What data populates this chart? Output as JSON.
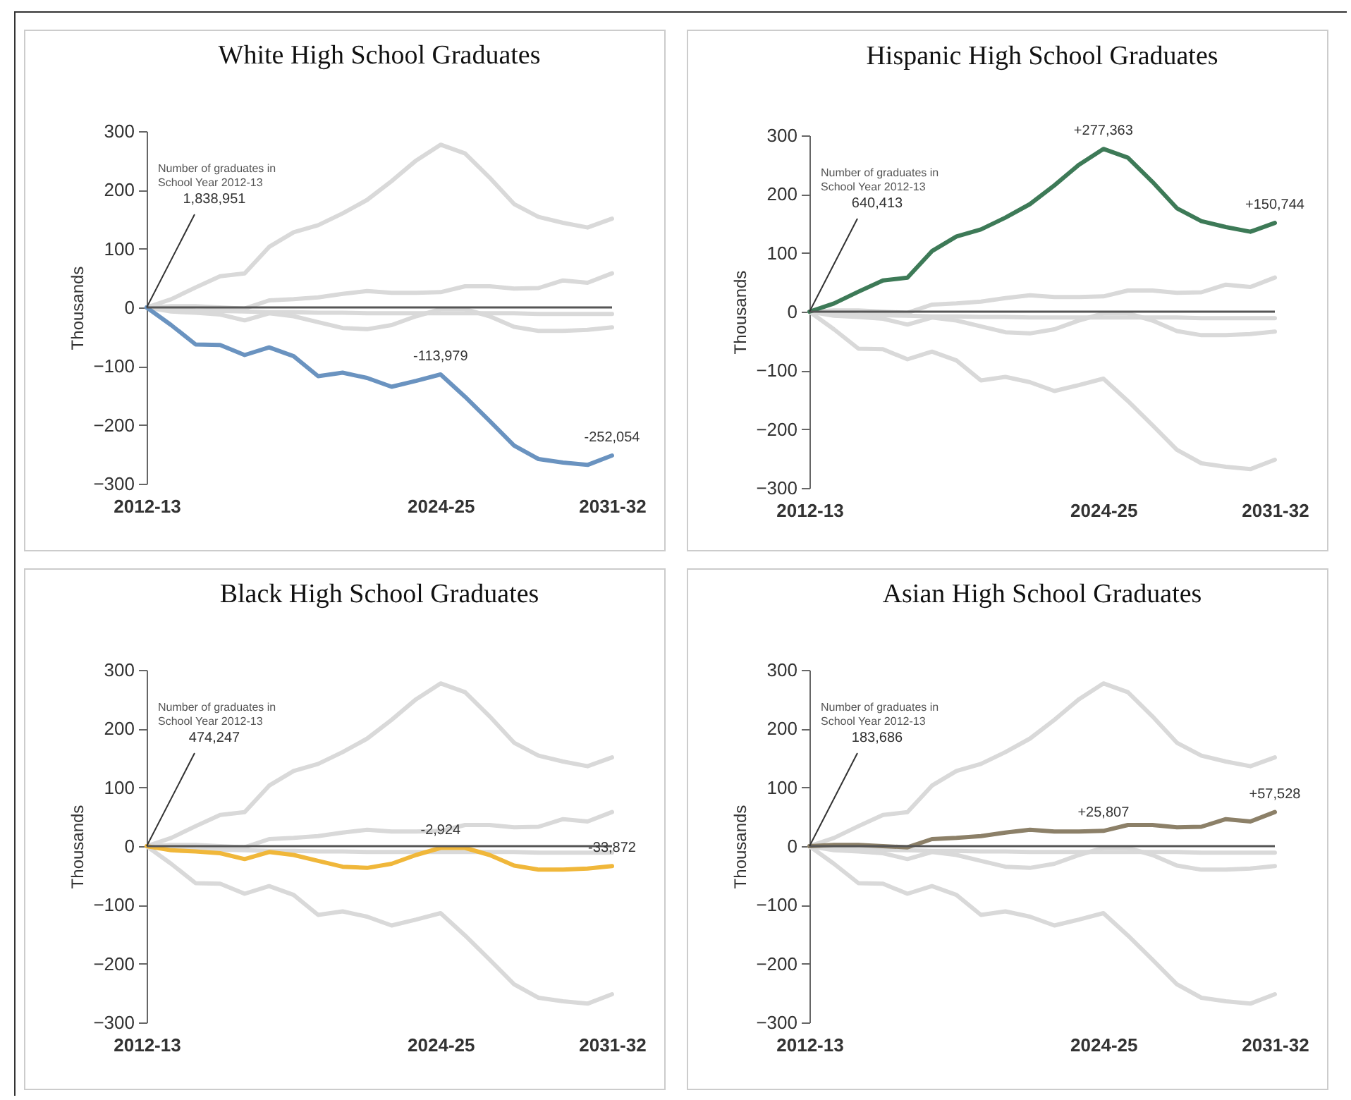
{
  "chart_data": [
    {
      "type": "line",
      "title": "White High School Graduates",
      "ylabel": "Thousands",
      "categories": [
        "2012-13",
        null,
        null,
        null,
        null,
        null,
        null,
        null,
        null,
        null,
        null,
        null,
        "2024-25",
        null,
        null,
        null,
        null,
        null,
        null,
        "2031-32"
      ],
      "ylim": [
        -300,
        300
      ],
      "yticks": [
        -300,
        -200,
        -100,
        0,
        100,
        200,
        300
      ],
      "ref_lines": [
        {
          "axis": "y",
          "value": 0,
          "color": "#555555"
        }
      ],
      "series": [
        {
          "color": "#d9d9d9",
          "values": [
            0,
            14,
            34,
            53,
            58,
            103,
            128,
            140,
            160,
            183,
            215,
            250,
            277,
            262,
            221,
            176,
            154,
            144,
            136,
            151
          ]
        },
        {
          "color": "#d9d9d9",
          "values": [
            0,
            2,
            2,
            0,
            -2,
            12,
            14,
            17,
            23,
            28,
            25,
            25,
            26,
            36,
            36,
            32,
            33,
            46,
            42,
            58
          ]
        },
        {
          "color": "#d9d9d9",
          "values": [
            0,
            -3,
            -5,
            -6,
            -7,
            -8,
            -8,
            -9,
            -9,
            -10,
            -10,
            -10,
            -10,
            -10,
            -10,
            -10,
            -11,
            -11,
            -11,
            -11
          ]
        },
        {
          "color": "#d9d9d9",
          "values": [
            0,
            -7,
            -9,
            -12,
            -22,
            -10,
            -15,
            -25,
            -35,
            -37,
            -30,
            -15,
            -3,
            -3,
            -15,
            -33,
            -40,
            -40,
            -38,
            -34
          ]
        },
        {
          "color": "#6a93c0",
          "values": [
            0,
            -30,
            -63,
            -64,
            -81,
            -68,
            -83,
            -117,
            -111,
            -120,
            -135,
            -125,
            -114,
            -152,
            -193,
            -235,
            -258,
            -264,
            -268,
            -252
          ]
        }
      ],
      "annotations": [
        "Number of graduates in School Year 2012-13",
        {
          "text": "1,838,951",
          "x": "2012-13",
          "y": 0
        },
        {
          "text": "-113,979",
          "x": "2024-25",
          "y": -114
        },
        {
          "text": "-252,054",
          "x": "2031-32",
          "y": -252
        }
      ]
    },
    {
      "type": "line",
      "title": "Hispanic High School Graduates",
      "ylabel": "Thousands",
      "categories": [
        "2012-13",
        null,
        null,
        null,
        null,
        null,
        null,
        null,
        null,
        null,
        null,
        null,
        "2024-25",
        null,
        null,
        null,
        null,
        null,
        null,
        "2031-32"
      ],
      "ylim": [
        -300,
        300
      ],
      "yticks": [
        -300,
        -200,
        -100,
        0,
        100,
        200,
        300
      ],
      "ref_lines": [
        {
          "axis": "y",
          "value": 0,
          "color": "#555555"
        }
      ],
      "series": [
        {
          "color": "#d9d9d9",
          "values": [
            0,
            -30,
            -63,
            -64,
            -81,
            -68,
            -83,
            -117,
            -111,
            -120,
            -135,
            -125,
            -114,
            -152,
            -193,
            -235,
            -258,
            -264,
            -268,
            -252
          ]
        },
        {
          "color": "#d9d9d9",
          "values": [
            0,
            2,
            2,
            0,
            -2,
            12,
            14,
            17,
            23,
            28,
            25,
            25,
            26,
            36,
            36,
            32,
            33,
            46,
            42,
            58
          ]
        },
        {
          "color": "#d9d9d9",
          "values": [
            0,
            -3,
            -5,
            -6,
            -7,
            -8,
            -8,
            -9,
            -9,
            -10,
            -10,
            -10,
            -10,
            -10,
            -10,
            -10,
            -11,
            -11,
            -11,
            -11
          ]
        },
        {
          "color": "#d9d9d9",
          "values": [
            0,
            -7,
            -9,
            -12,
            -22,
            -10,
            -15,
            -25,
            -35,
            -37,
            -30,
            -15,
            -3,
            -3,
            -15,
            -33,
            -40,
            -40,
            -38,
            -34
          ]
        },
        {
          "color": "#3d7a57",
          "values": [
            0,
            14,
            34,
            53,
            58,
            103,
            128,
            140,
            160,
            183,
            215,
            250,
            277,
            262,
            221,
            176,
            154,
            144,
            136,
            151
          ]
        }
      ],
      "annotations": [
        "Number of graduates in School Year 2012-13",
        {
          "text": "640,413",
          "x": "2012-13",
          "y": 0
        },
        {
          "text": "+277,363",
          "x": "2024-25",
          "y": 277
        },
        {
          "text": "+150,744",
          "x": "2031-32",
          "y": 151
        }
      ]
    },
    {
      "type": "line",
      "title": "Black High School Graduates",
      "ylabel": "Thousands",
      "categories": [
        "2012-13",
        null,
        null,
        null,
        null,
        null,
        null,
        null,
        null,
        null,
        null,
        null,
        "2024-25",
        null,
        null,
        null,
        null,
        null,
        null,
        "2031-32"
      ],
      "ylim": [
        -300,
        300
      ],
      "yticks": [
        -300,
        -200,
        -100,
        0,
        100,
        200,
        300
      ],
      "ref_lines": [
        {
          "axis": "y",
          "value": 0,
          "color": "#555555"
        }
      ],
      "series": [
        {
          "color": "#d9d9d9",
          "values": [
            0,
            14,
            34,
            53,
            58,
            103,
            128,
            140,
            160,
            183,
            215,
            250,
            277,
            262,
            221,
            176,
            154,
            144,
            136,
            151
          ]
        },
        {
          "color": "#d9d9d9",
          "values": [
            0,
            -30,
            -63,
            -64,
            -81,
            -68,
            -83,
            -117,
            -111,
            -120,
            -135,
            -125,
            -114,
            -152,
            -193,
            -235,
            -258,
            -264,
            -268,
            -252
          ]
        },
        {
          "color": "#d9d9d9",
          "values": [
            0,
            2,
            2,
            0,
            -2,
            12,
            14,
            17,
            23,
            28,
            25,
            25,
            26,
            36,
            36,
            32,
            33,
            46,
            42,
            58
          ]
        },
        {
          "color": "#d9d9d9",
          "values": [
            0,
            -3,
            -5,
            -6,
            -7,
            -8,
            -8,
            -9,
            -9,
            -10,
            -10,
            -10,
            -10,
            -10,
            -10,
            -10,
            -11,
            -11,
            -11,
            -11
          ]
        },
        {
          "color": "#f0b73a",
          "values": [
            0,
            -7,
            -9,
            -12,
            -22,
            -10,
            -15,
            -25,
            -35,
            -37,
            -30,
            -15,
            -3,
            -3,
            -15,
            -33,
            -40,
            -40,
            -38,
            -34
          ]
        }
      ],
      "annotations": [
        "Number of graduates in School Year 2012-13",
        {
          "text": "474,247",
          "x": "2012-13",
          "y": 0
        },
        {
          "text": "-2,924",
          "x": "2024-25",
          "y": -3
        },
        {
          "text": "-33,872",
          "x": "2031-32",
          "y": -34
        }
      ]
    },
    {
      "type": "line",
      "title": "Asian High School Graduates",
      "ylabel": "Thousands",
      "categories": [
        "2012-13",
        null,
        null,
        null,
        null,
        null,
        null,
        null,
        null,
        null,
        null,
        null,
        "2024-25",
        null,
        null,
        null,
        null,
        null,
        null,
        "2031-32"
      ],
      "ylim": [
        -300,
        300
      ],
      "yticks": [
        -300,
        -200,
        -100,
        0,
        100,
        200,
        300
      ],
      "ref_lines": [
        {
          "axis": "y",
          "value": 0,
          "color": "#555555"
        }
      ],
      "series": [
        {
          "color": "#d9d9d9",
          "values": [
            0,
            14,
            34,
            53,
            58,
            103,
            128,
            140,
            160,
            183,
            215,
            250,
            277,
            262,
            221,
            176,
            154,
            144,
            136,
            151
          ]
        },
        {
          "color": "#d9d9d9",
          "values": [
            0,
            -30,
            -63,
            -64,
            -81,
            -68,
            -83,
            -117,
            -111,
            -120,
            -135,
            -125,
            -114,
            -152,
            -193,
            -235,
            -258,
            -264,
            -268,
            -252
          ]
        },
        {
          "color": "#d9d9d9",
          "values": [
            0,
            -3,
            -5,
            -6,
            -7,
            -8,
            -8,
            -9,
            -9,
            -10,
            -10,
            -10,
            -10,
            -10,
            -10,
            -10,
            -11,
            -11,
            -11,
            -11
          ]
        },
        {
          "color": "#d9d9d9",
          "values": [
            0,
            -7,
            -9,
            -12,
            -22,
            -10,
            -15,
            -25,
            -35,
            -37,
            -30,
            -15,
            -3,
            -3,
            -15,
            -33,
            -40,
            -40,
            -38,
            -34
          ]
        },
        {
          "color": "#8c8068",
          "values": [
            0,
            2,
            2,
            0,
            -2,
            12,
            14,
            17,
            23,
            28,
            25,
            25,
            26,
            36,
            36,
            32,
            33,
            46,
            42,
            58
          ]
        }
      ],
      "annotations": [
        "Number of graduates in School Year 2012-13",
        {
          "text": "183,686",
          "x": "2012-13",
          "y": 0
        },
        {
          "text": "+25,807",
          "x": "2024-25",
          "y": 26
        },
        {
          "text": "+57,528",
          "x": "2031-32",
          "y": 58
        }
      ]
    }
  ]
}
